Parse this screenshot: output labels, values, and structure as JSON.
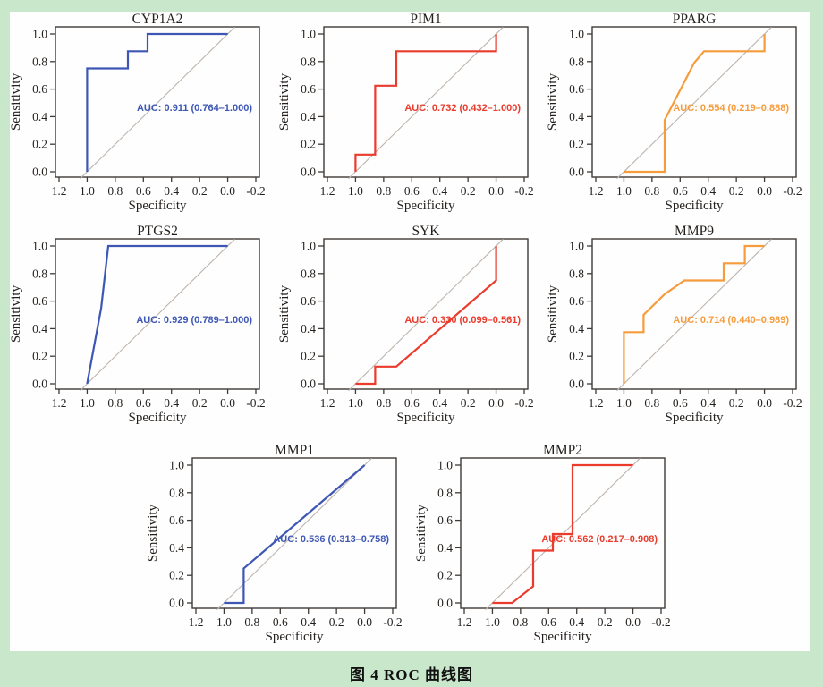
{
  "page": {
    "caption": "图 4  ROC 曲线图",
    "background_color": "#c9e8cb",
    "panel_color": "#fefefe"
  },
  "colors": {
    "blue_curve": "#3e57b4",
    "red_curve": "#ea3b2c",
    "orange_curve": "#f59c3c",
    "reference_line": "#beb5ad",
    "frame": "#3f3a36",
    "text": "#231f1c"
  },
  "axes": {
    "xlabel": "Specificity",
    "ylabel": "Sensitivity",
    "x_tick_labels": [
      "1.2",
      "1.0",
      "0.8",
      "0.6",
      "0.4",
      "0.2",
      "0.0",
      "-0.2"
    ],
    "x_tick_values": [
      1.2,
      1.0,
      0.8,
      0.6,
      0.4,
      0.2,
      0.0,
      -0.2
    ],
    "y_tick_labels": [
      "0.0",
      "0.2",
      "0.4",
      "0.6",
      "0.8",
      "1.0"
    ],
    "y_tick_values": [
      0,
      0.2,
      0.4,
      0.6,
      0.8,
      1.0
    ],
    "x_range": [
      1.2,
      -0.2
    ],
    "y_range": [
      0,
      1
    ],
    "grid": false,
    "reference_diagonal": "sensitivity = 1 - specificity"
  },
  "chart_data": [
    {
      "type": "line",
      "title": "CYP1A2",
      "color": "#3e57b4",
      "auc": 0.911,
      "ci": [
        0.764,
        1.0
      ],
      "auc_label": "AUC: 0.911 (0.764–1.000)",
      "points": [
        [
          1,
          0
        ],
        [
          1,
          0.75
        ],
        [
          0.71,
          0.75
        ],
        [
          0.71,
          0.875
        ],
        [
          0.57,
          0.875
        ],
        [
          0.57,
          1
        ],
        [
          0,
          1
        ]
      ]
    },
    {
      "type": "line",
      "title": "PIM1",
      "color": "#ea3b2c",
      "auc": 0.732,
      "ci": [
        0.432,
        1.0
      ],
      "auc_label": "AUC: 0.732 (0.432–1.000)",
      "points": [
        [
          1,
          0
        ],
        [
          1,
          0.125
        ],
        [
          0.86,
          0.125
        ],
        [
          0.86,
          0.625
        ],
        [
          0.71,
          0.625
        ],
        [
          0.71,
          0.875
        ],
        [
          0,
          0.875
        ],
        [
          0,
          1
        ]
      ]
    },
    {
      "type": "line",
      "title": "PPARG",
      "color": "#f59c3c",
      "auc": 0.554,
      "ci": [
        0.219,
        0.888
      ],
      "auc_label": "AUC: 0.554 (0.219–0.888)",
      "points": [
        [
          1,
          0
        ],
        [
          0.71,
          0
        ],
        [
          0.71,
          0.375
        ],
        [
          0.5,
          0.79
        ],
        [
          0.43,
          0.875
        ],
        [
          0,
          0.875
        ],
        [
          0,
          1
        ]
      ]
    },
    {
      "type": "line",
      "title": "PTGS2",
      "color": "#3e57b4",
      "auc": 0.929,
      "ci": [
        0.789,
        1.0
      ],
      "auc_label": "AUC: 0.929 (0.789–1.000)",
      "points": [
        [
          1,
          0
        ],
        [
          0.9,
          0.55
        ],
        [
          0.85,
          1
        ],
        [
          0,
          1
        ]
      ]
    },
    {
      "type": "line",
      "title": "SYK",
      "color": "#ea3b2c",
      "auc": 0.33,
      "ci": [
        0.099,
        0.561
      ],
      "auc_label": "AUC: 0.330 (0.099–0.561)",
      "points": [
        [
          1,
          0
        ],
        [
          0.86,
          0
        ],
        [
          0.86,
          0.125
        ],
        [
          0.71,
          0.125
        ],
        [
          0,
          0.75
        ],
        [
          0,
          1
        ]
      ]
    },
    {
      "type": "line",
      "title": "MMP9",
      "color": "#f59c3c",
      "auc": 0.714,
      "ci": [
        0.44,
        0.989
      ],
      "auc_label": "AUC: 0.714 (0.440–0.989)",
      "points": [
        [
          1,
          0
        ],
        [
          1,
          0.375
        ],
        [
          0.86,
          0.375
        ],
        [
          0.86,
          0.5
        ],
        [
          0.71,
          0.65
        ],
        [
          0.57,
          0.75
        ],
        [
          0.29,
          0.75
        ],
        [
          0.29,
          0.875
        ],
        [
          0.14,
          0.875
        ],
        [
          0.14,
          1
        ],
        [
          0,
          1
        ]
      ]
    },
    {
      "type": "line",
      "title": "MMP1",
      "color": "#3e57b4",
      "auc": 0.536,
      "ci": [
        0.313,
        0.758
      ],
      "auc_label": "AUC: 0.536 (0.313–0.758)",
      "points": [
        [
          1,
          0
        ],
        [
          0.86,
          0
        ],
        [
          0.86,
          0.25
        ],
        [
          0,
          1
        ]
      ]
    },
    {
      "type": "line",
      "title": "MMP2",
      "color": "#ea3b2c",
      "auc": 0.562,
      "ci": [
        0.217,
        0.908
      ],
      "auc_label": "AUC: 0.562 (0.217–0.908)",
      "points": [
        [
          1,
          0
        ],
        [
          0.86,
          0
        ],
        [
          0.71,
          0.12
        ],
        [
          0.71,
          0.38
        ],
        [
          0.57,
          0.38
        ],
        [
          0.57,
          0.5
        ],
        [
          0.43,
          0.5
        ],
        [
          0.43,
          1
        ],
        [
          0,
          1
        ]
      ]
    }
  ]
}
